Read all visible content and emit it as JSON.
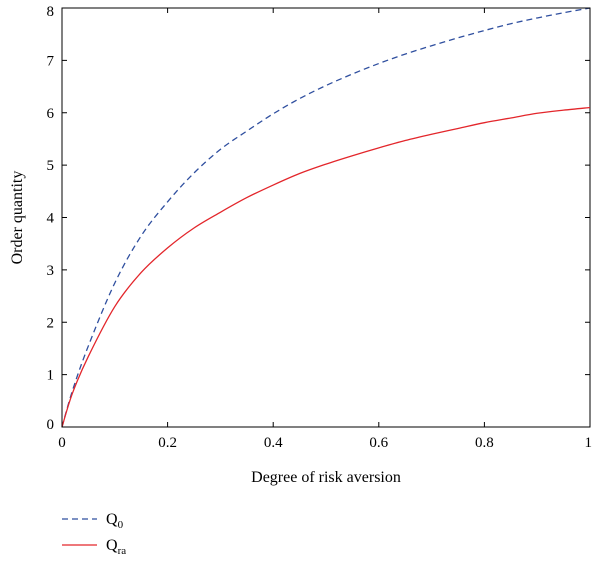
{
  "chart_data": {
    "type": "line",
    "title": "",
    "xlabel": "Degree of risk aversion",
    "ylabel": "Order quantity",
    "xlim": [
      0,
      1
    ],
    "ylim": [
      0,
      8
    ],
    "xticks": [
      0,
      0.2,
      0.4,
      0.6,
      0.8,
      1
    ],
    "xtick_labels": [
      "0",
      "0.2",
      "0.4",
      "0.6",
      "0.8",
      "1"
    ],
    "yticks": [
      0,
      1,
      2,
      3,
      4,
      5,
      6,
      7,
      8
    ],
    "ytick_labels": [
      "0",
      "1",
      "2",
      "3",
      "4",
      "5",
      "6",
      "7",
      "8"
    ],
    "grid": false,
    "legend_position": "below",
    "series": [
      {
        "name": "Q",
        "name_subscript": "0",
        "color": "#2f4f9f",
        "style": "dashed",
        "x": [
          0,
          0.02,
          0.05,
          0.1,
          0.15,
          0.2,
          0.25,
          0.3,
          0.35,
          0.4,
          0.45,
          0.5,
          0.55,
          0.6,
          0.65,
          0.7,
          0.75,
          0.8,
          0.85,
          0.9,
          0.95,
          1.0
        ],
        "y": [
          0,
          0.7,
          1.55,
          2.75,
          3.65,
          4.3,
          4.85,
          5.3,
          5.65,
          5.98,
          6.27,
          6.52,
          6.74,
          6.94,
          7.12,
          7.28,
          7.43,
          7.57,
          7.7,
          7.81,
          7.91,
          8.0
        ]
      },
      {
        "name": "Q",
        "name_subscript": "ra",
        "color": "#e3262b",
        "style": "solid",
        "x": [
          0,
          0.02,
          0.05,
          0.1,
          0.15,
          0.2,
          0.25,
          0.3,
          0.35,
          0.4,
          0.45,
          0.5,
          0.55,
          0.6,
          0.65,
          0.7,
          0.75,
          0.8,
          0.85,
          0.9,
          0.95,
          1.0
        ],
        "y": [
          0,
          0.65,
          1.35,
          2.3,
          2.95,
          3.42,
          3.8,
          4.1,
          4.38,
          4.62,
          4.84,
          5.02,
          5.18,
          5.33,
          5.47,
          5.59,
          5.7,
          5.81,
          5.9,
          5.99,
          6.05,
          6.1
        ]
      }
    ]
  }
}
